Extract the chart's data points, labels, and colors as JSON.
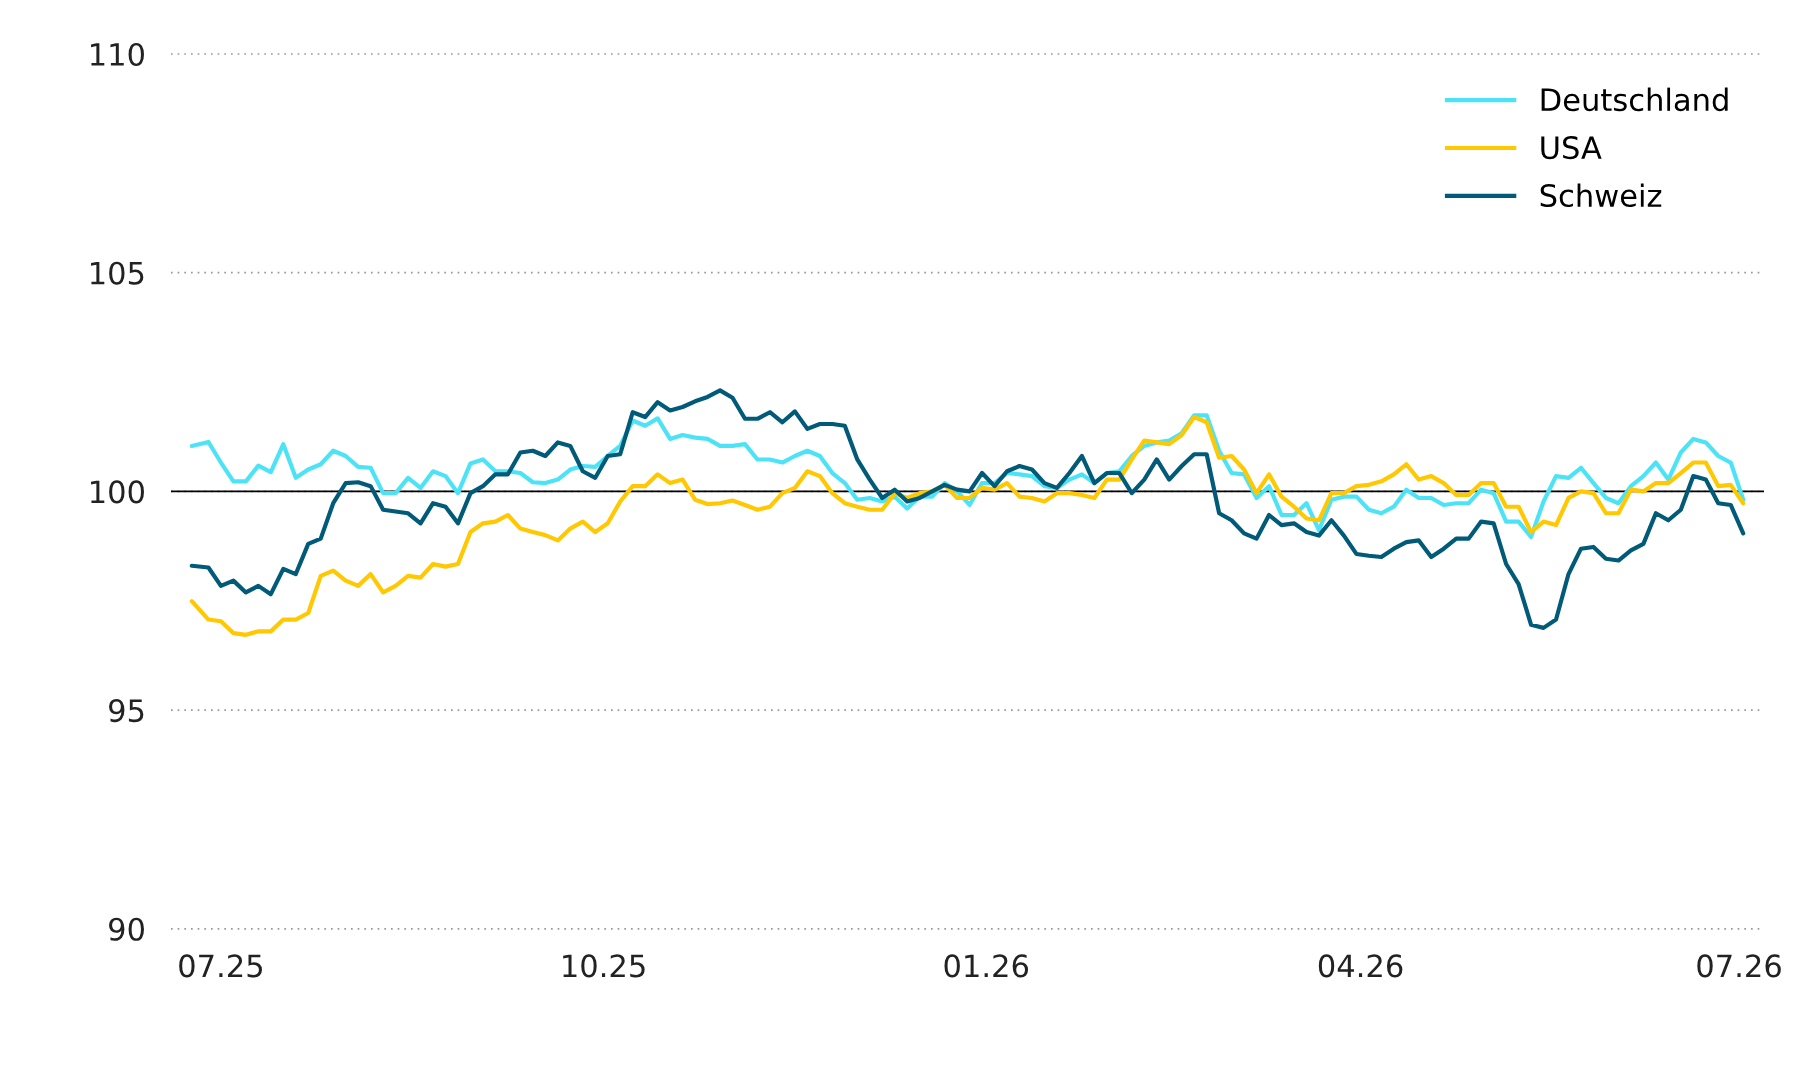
{
  "chart_data": {
    "type": "line",
    "x": [
      "2025-06-24",
      "2025-06-28",
      "2025-07-01",
      "2025-07-04",
      "2025-07-07",
      "2025-07-10",
      "2025-07-13",
      "2025-07-16",
      "2025-07-19",
      "2025-07-22",
      "2025-07-25",
      "2025-07-28",
      "2025-07-31",
      "2025-08-03",
      "2025-08-06",
      "2025-08-09",
      "2025-08-12",
      "2025-08-15",
      "2025-08-18",
      "2025-08-21",
      "2025-08-24",
      "2025-08-27",
      "2025-08-30",
      "2025-09-02",
      "2025-09-05",
      "2025-09-08",
      "2025-09-11",
      "2025-09-14",
      "2025-09-17",
      "2025-09-20",
      "2025-09-23",
      "2025-09-26",
      "2025-09-29",
      "2025-10-02",
      "2025-10-05",
      "2025-10-08",
      "2025-10-11",
      "2025-10-14",
      "2025-10-17",
      "2025-10-20",
      "2025-10-23",
      "2025-10-26",
      "2025-10-29",
      "2025-11-01",
      "2025-11-04",
      "2025-11-07",
      "2025-11-10",
      "2025-11-13",
      "2025-11-16",
      "2025-11-19",
      "2025-11-22",
      "2025-11-25",
      "2025-11-28",
      "2025-12-01",
      "2025-12-04",
      "2025-12-07",
      "2025-12-10",
      "2025-12-13",
      "2025-12-16",
      "2025-12-19",
      "2025-12-22",
      "2025-12-25",
      "2025-12-28",
      "2025-12-31",
      "2026-01-03",
      "2026-01-06",
      "2026-01-09",
      "2026-01-12",
      "2026-01-15",
      "2026-01-18",
      "2026-01-21",
      "2026-01-24",
      "2026-01-27",
      "2026-01-30",
      "2026-02-02",
      "2026-02-05",
      "2026-02-08",
      "2026-02-11",
      "2026-02-14",
      "2026-02-17",
      "2026-02-20",
      "2026-02-23",
      "2026-02-26",
      "2026-03-01",
      "2026-03-04",
      "2026-03-07",
      "2026-03-10",
      "2026-03-13",
      "2026-03-16",
      "2026-03-19",
      "2026-03-22",
      "2026-03-25",
      "2026-03-28",
      "2026-03-31",
      "2026-04-03",
      "2026-04-06",
      "2026-04-09",
      "2026-04-12",
      "2026-04-15",
      "2026-04-18",
      "2026-04-21",
      "2026-04-24",
      "2026-04-27",
      "2026-04-30",
      "2026-05-03",
      "2026-05-06",
      "2026-05-09",
      "2026-05-12",
      "2026-05-15",
      "2026-05-18",
      "2026-05-21",
      "2026-05-24",
      "2026-05-27",
      "2026-05-30",
      "2026-06-02",
      "2026-06-05",
      "2026-06-08",
      "2026-06-11",
      "2026-06-14",
      "2026-06-17",
      "2026-06-20",
      "2026-06-23",
      "2026-06-26",
      "2026-06-29",
      "2026-07-02"
    ],
    "series": [
      {
        "name": "Deutschland",
        "color": "#4de3f7",
        "values": [
          101.04,
          101.13,
          100.66,
          100.23,
          100.23,
          100.59,
          100.44,
          101.08,
          100.31,
          100.5,
          100.62,
          100.93,
          100.81,
          100.56,
          100.54,
          99.96,
          99.96,
          100.31,
          100.08,
          100.46,
          100.35,
          99.96,
          100.64,
          100.73,
          100.46,
          100.46,
          100.42,
          100.21,
          100.19,
          100.27,
          100.5,
          100.58,
          100.56,
          100.81,
          101.04,
          101.62,
          101.5,
          101.67,
          101.2,
          101.29,
          101.23,
          101.2,
          101.04,
          101.04,
          101.08,
          100.73,
          100.73,
          100.66,
          100.81,
          100.93,
          100.81,
          100.42,
          100.19,
          99.81,
          99.85,
          99.77,
          99.88,
          99.61,
          99.88,
          99.88,
          100.19,
          100.0,
          99.69,
          100.19,
          100.19,
          100.42,
          100.39,
          100.35,
          100.12,
          100.08,
          100.27,
          100.39,
          100.19,
          100.42,
          100.46,
          100.81,
          101.04,
          101.12,
          101.16,
          101.33,
          101.74,
          101.74,
          100.93,
          100.42,
          100.39,
          99.85,
          100.12,
          99.46,
          99.46,
          99.73,
          99.11,
          99.81,
          99.88,
          99.88,
          99.58,
          99.5,
          99.65,
          100.04,
          99.85,
          99.85,
          99.69,
          99.73,
          99.73,
          100.04,
          99.96,
          99.31,
          99.31,
          98.96,
          99.77,
          100.35,
          100.31,
          100.54,
          100.19,
          99.85,
          99.73,
          100.12,
          100.35,
          100.66,
          100.27,
          100.89,
          101.2,
          101.12,
          100.81,
          100.66,
          99.81
        ]
      },
      {
        "name": "USA",
        "color": "#ffc800",
        "values": [
          97.49,
          97.07,
          97.03,
          96.76,
          96.72,
          96.8,
          96.8,
          97.07,
          97.07,
          97.22,
          98.07,
          98.19,
          97.96,
          97.84,
          98.11,
          97.69,
          97.84,
          98.07,
          98.03,
          98.34,
          98.28,
          98.34,
          99.07,
          99.27,
          99.31,
          99.46,
          99.15,
          99.07,
          99.0,
          98.88,
          99.15,
          99.31,
          99.07,
          99.27,
          99.77,
          100.12,
          100.12,
          100.39,
          100.19,
          100.27,
          99.81,
          99.71,
          99.73,
          99.79,
          99.69,
          99.58,
          99.65,
          99.96,
          100.08,
          100.46,
          100.35,
          99.96,
          99.73,
          99.65,
          99.58,
          99.58,
          99.96,
          99.85,
          99.96,
          100.0,
          100.15,
          99.85,
          99.85,
          100.08,
          100.04,
          100.19,
          99.88,
          99.85,
          99.77,
          99.96,
          99.96,
          99.92,
          99.85,
          100.27,
          100.27,
          100.73,
          101.16,
          101.12,
          101.08,
          101.29,
          101.7,
          101.58,
          100.77,
          100.81,
          100.5,
          99.96,
          100.39,
          99.88,
          99.65,
          99.38,
          99.34,
          99.96,
          99.96,
          100.12,
          100.15,
          100.23,
          100.39,
          100.62,
          100.27,
          100.35,
          100.19,
          99.92,
          99.92,
          100.19,
          100.19,
          99.65,
          99.65,
          99.07,
          99.31,
          99.23,
          99.85,
          100.0,
          99.96,
          99.5,
          99.5,
          100.04,
          100.0,
          100.19,
          100.19,
          100.42,
          100.66,
          100.66,
          100.12,
          100.15,
          99.73
        ]
      },
      {
        "name": "Schweiz",
        "color": "#005a78",
        "values": [
          98.3,
          98.26,
          97.84,
          97.96,
          97.69,
          97.84,
          97.65,
          98.23,
          98.11,
          98.8,
          98.92,
          99.73,
          100.19,
          100.21,
          100.12,
          99.58,
          99.54,
          99.5,
          99.27,
          99.73,
          99.65,
          99.27,
          99.96,
          100.12,
          100.39,
          100.39,
          100.89,
          100.93,
          100.81,
          101.12,
          101.04,
          100.46,
          100.31,
          100.81,
          100.85,
          101.81,
          101.7,
          102.04,
          101.85,
          101.93,
          102.06,
          102.16,
          102.31,
          102.14,
          101.66,
          101.66,
          101.81,
          101.58,
          101.83,
          101.43,
          101.54,
          101.54,
          101.5,
          100.73,
          100.27,
          99.85,
          100.04,
          99.77,
          99.85,
          100.0,
          100.15,
          100.04,
          100.0,
          100.42,
          100.12,
          100.46,
          100.58,
          100.5,
          100.19,
          100.08,
          100.42,
          100.81,
          100.19,
          100.42,
          100.42,
          99.96,
          100.27,
          100.73,
          100.27,
          100.58,
          100.85,
          100.85,
          99.5,
          99.34,
          99.04,
          98.92,
          99.46,
          99.23,
          99.27,
          99.07,
          98.99,
          99.34,
          98.99,
          98.57,
          98.53,
          98.5,
          98.69,
          98.84,
          98.88,
          98.5,
          98.69,
          98.92,
          98.92,
          99.31,
          99.27,
          98.34,
          97.88,
          96.95,
          96.88,
          97.07,
          98.11,
          98.69,
          98.73,
          98.46,
          98.42,
          98.65,
          98.8,
          99.5,
          99.34,
          99.58,
          100.35,
          100.27,
          99.73,
          99.69,
          99.04
        ]
      }
    ],
    "xlim": [
      "2025-06-19",
      "2026-07-07"
    ],
    "xticks": [
      {
        "value": "2025-07-01",
        "label": "07.25"
      },
      {
        "value": "2025-10-01",
        "label": "10.25"
      },
      {
        "value": "2026-01-01",
        "label": "01.26"
      },
      {
        "value": "2026-04-01",
        "label": "04.26"
      },
      {
        "value": "2026-07-01",
        "label": "07.26"
      }
    ],
    "ylim": [
      90,
      110
    ],
    "yticks": [
      90,
      95,
      100,
      105,
      110
    ],
    "ref_lines": [
      {
        "axis": "y",
        "value": 100,
        "color": "#000000",
        "line_style": "solid"
      }
    ],
    "grid": "y",
    "legend": "top right",
    "marker": "none",
    "line_style": "solid"
  }
}
